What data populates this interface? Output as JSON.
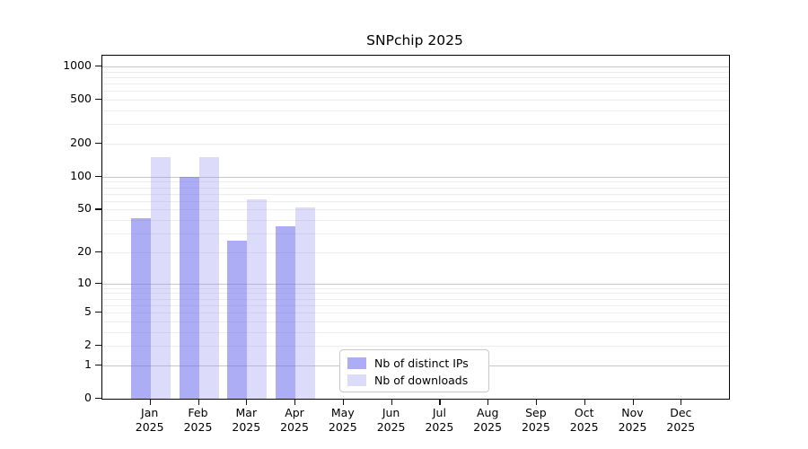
{
  "chart_data": {
    "type": "bar",
    "title": "SNPchip 2025",
    "y_scale": "log10(value+1)",
    "y_ticks": [
      0,
      1,
      2,
      5,
      10,
      20,
      50,
      100,
      200,
      500,
      1000
    ],
    "y_major_gridlines": [
      1,
      10,
      100,
      1000
    ],
    "y_minor_gridlines": [
      2,
      3,
      4,
      5,
      6,
      7,
      8,
      9,
      20,
      30,
      40,
      50,
      60,
      70,
      80,
      90,
      200,
      300,
      400,
      500,
      600,
      700,
      800,
      900
    ],
    "ylim_top_value": 1250,
    "grid": "horizontal",
    "categories": [
      {
        "month": "Jan",
        "year": "2025"
      },
      {
        "month": "Feb",
        "year": "2025"
      },
      {
        "month": "Mar",
        "year": "2025"
      },
      {
        "month": "Apr",
        "year": "2025"
      },
      {
        "month": "May",
        "year": "2025"
      },
      {
        "month": "Jun",
        "year": "2025"
      },
      {
        "month": "Jul",
        "year": "2025"
      },
      {
        "month": "Aug",
        "year": "2025"
      },
      {
        "month": "Sep",
        "year": "2025"
      },
      {
        "month": "Oct",
        "year": "2025"
      },
      {
        "month": "Nov",
        "year": "2025"
      },
      {
        "month": "Dec",
        "year": "2025"
      }
    ],
    "series": [
      {
        "name": "Nb of distinct IPs",
        "color": "rgba(105, 105, 237, 0.55)",
        "values": [
          42,
          100,
          26,
          35,
          0,
          0,
          0,
          0,
          0,
          0,
          0,
          0
        ]
      },
      {
        "name": "Nb of downloads",
        "color": "rgba(150, 150, 240, 0.33)",
        "values": [
          150,
          150,
          62,
          52,
          0,
          0,
          0,
          0,
          0,
          0,
          0,
          0
        ]
      }
    ],
    "legend": {
      "position": "inside-bottom-center",
      "entries": [
        "Nb of distinct IPs",
        "Nb of downloads"
      ]
    }
  }
}
